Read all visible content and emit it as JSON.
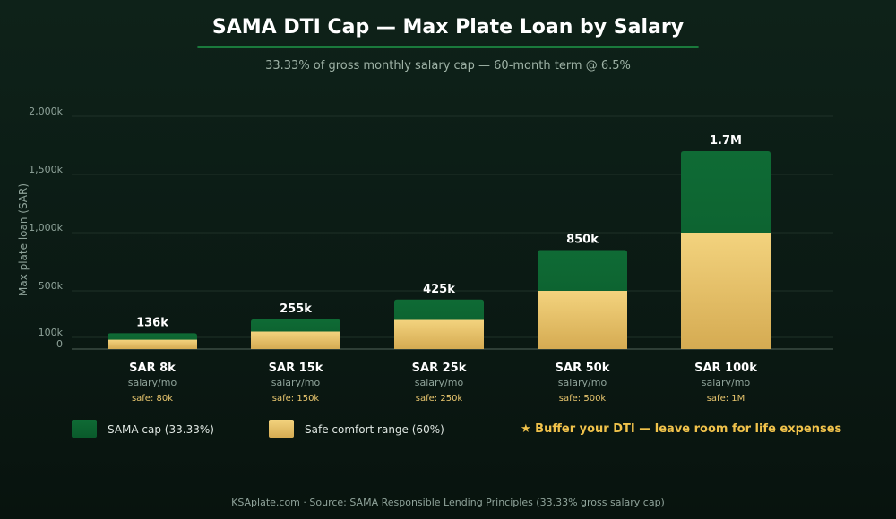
{
  "title": "SAMA DTI Cap — Max Plate Loan by Salary",
  "subtitle": "33.33% of gross monthly salary cap — 60-month term @ 6.5%",
  "chart_data": {
    "type": "bar",
    "ylabel": "Max plate loan (SAR)",
    "categories": [
      "SAR 8k",
      "SAR 15k",
      "SAR 25k",
      "SAR 50k",
      "SAR 100k"
    ],
    "category_sub": [
      "salary/mo",
      "salary/mo",
      "salary/mo",
      "salary/mo",
      "salary/mo"
    ],
    "safe_labels": [
      "safe: 80k",
      "safe: 150k",
      "safe: 250k",
      "safe: 500k",
      "safe: 1M"
    ],
    "value_labels": [
      "136k",
      "255k",
      "425k",
      "850k",
      "1.7M"
    ],
    "yticks": [
      {
        "label": "0",
        "value": 0
      },
      {
        "label": "100k",
        "value": 100
      },
      {
        "label": "500k",
        "value": 500
      },
      {
        "label": "1,000k",
        "value": 1000
      },
      {
        "label": "1,500k",
        "value": 1500
      },
      {
        "label": "2,000k",
        "value": 2000
      }
    ],
    "series": [
      {
        "name": "SAMA cap (33.33%)",
        "values": [
          136,
          255,
          425,
          850,
          1700
        ],
        "color": "#0f6b35"
      },
      {
        "name": "Safe comfort range (60%)",
        "values": [
          80,
          150,
          250,
          500,
          1000
        ],
        "color": "#e9c66e"
      }
    ],
    "note": "not-used"
  },
  "legend": {
    "cap_label": "SAMA cap (33.33%)",
    "safe_label": "Safe comfort range (60%)",
    "cap_color": "#0f6b35",
    "safe_color": "#e9c66e"
  },
  "callout": "★ Buffer your DTI — leave room for life expenses",
  "footer": "KSAplate.com · Source: SAMA Responsible Lending Principles (33.33% gross salary cap)"
}
